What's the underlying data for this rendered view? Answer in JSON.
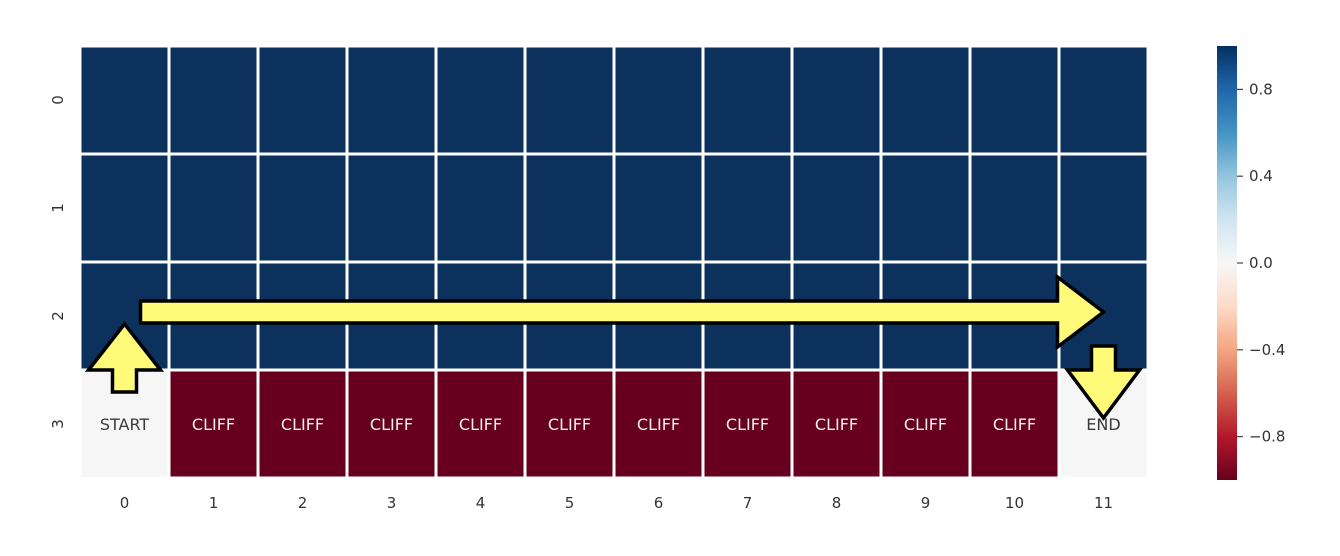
{
  "chart_data": {
    "type": "heatmap",
    "title": "",
    "xlabel": "",
    "ylabel": "",
    "x_ticks": [
      "0",
      "1",
      "2",
      "3",
      "4",
      "5",
      "6",
      "7",
      "8",
      "9",
      "10",
      "11"
    ],
    "y_ticks": [
      "0",
      "1",
      "2",
      "3"
    ],
    "values": [
      [
        1,
        1,
        1,
        1,
        1,
        1,
        1,
        1,
        1,
        1,
        1,
        1
      ],
      [
        1,
        1,
        1,
        1,
        1,
        1,
        1,
        1,
        1,
        1,
        1,
        1
      ],
      [
        1,
        1,
        1,
        1,
        1,
        1,
        1,
        1,
        1,
        1,
        1,
        1
      ],
      [
        0,
        -1,
        -1,
        -1,
        -1,
        -1,
        -1,
        -1,
        -1,
        -1,
        -1,
        0
      ]
    ],
    "annotations": [
      [
        "",
        "",
        "",
        "",
        "",
        "",
        "",
        "",
        "",
        "",
        "",
        ""
      ],
      [
        "",
        "",
        "",
        "",
        "",
        "",
        "",
        "",
        "",
        "",
        "",
        ""
      ],
      [
        "",
        "",
        "",
        "",
        "",
        "",
        "",
        "",
        "",
        "",
        "",
        ""
      ],
      [
        "START",
        "CLIFF",
        "CLIFF",
        "CLIFF",
        "CLIFF",
        "CLIFF",
        "CLIFF",
        "CLIFF",
        "CLIFF",
        "CLIFF",
        "CLIFF",
        "END"
      ]
    ],
    "colormap": "RdBu",
    "vmin": -1,
    "vmax": 1,
    "colorbar_ticks": [
      0.8,
      0.4,
      0.0,
      -0.4,
      -0.8
    ],
    "colorbar_tick_labels": [
      "0.8",
      "0.4",
      "0.0",
      "−0.4",
      "−0.8"
    ],
    "path_overlay": {
      "color": "#fffa78",
      "outline": "#000000",
      "arrows": [
        {
          "direction": "up",
          "from_cell": [
            3,
            0
          ],
          "to_cell": [
            2,
            0
          ]
        },
        {
          "direction": "right",
          "from_cell": [
            2,
            0
          ],
          "to_cell": [
            2,
            11
          ]
        },
        {
          "direction": "down",
          "from_cell": [
            2,
            11
          ],
          "to_cell": [
            3,
            11
          ]
        }
      ]
    }
  }
}
